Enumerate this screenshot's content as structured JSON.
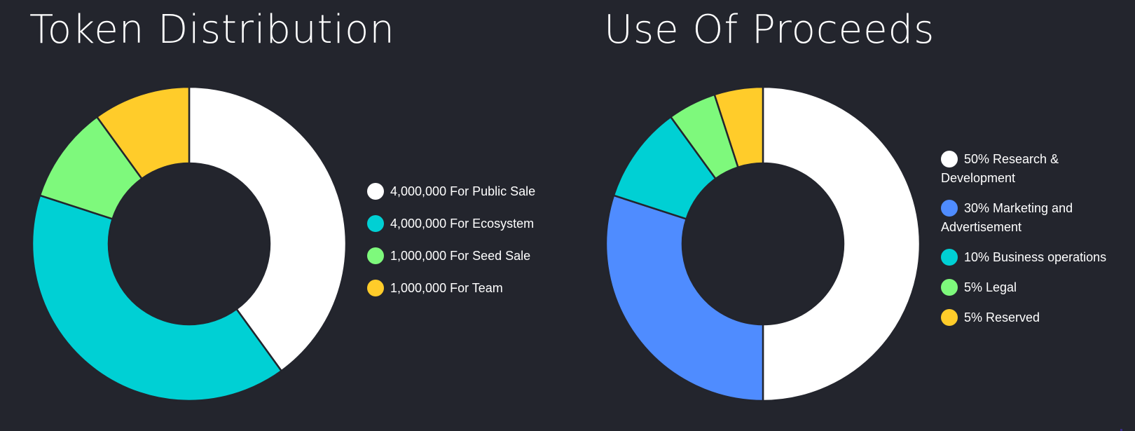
{
  "chart_data": [
    {
      "type": "pie",
      "donut": true,
      "title": "Token Distribution",
      "categories": [
        "4,000,000 For Public Sale",
        "4,000,000 For Ecosystem",
        "1,000,000 For Seed Sale",
        "1,000,000 For Team"
      ],
      "values": [
        4000000,
        4000000,
        1000000,
        1000000
      ],
      "colors": [
        "#ffffff",
        "#00d0d4",
        "#7ef97c",
        "#ffcc2a"
      ],
      "legend_position": "right"
    },
    {
      "type": "pie",
      "donut": true,
      "title": "Use Of Proceeds",
      "categories": [
        "50% Research & Development",
        "30% Marketing and Advertisement",
        "10% Business operations",
        "5% Legal",
        "5% Reserved"
      ],
      "values": [
        50,
        30,
        10,
        5,
        5
      ],
      "colors": [
        "#ffffff",
        "#4f8cff",
        "#00d0d4",
        "#7ef97c",
        "#ffcc2a"
      ],
      "legend_position": "right"
    }
  ],
  "theme": {
    "background": "#23252d",
    "slice_border": "#23252d",
    "text": "#ffffff"
  }
}
